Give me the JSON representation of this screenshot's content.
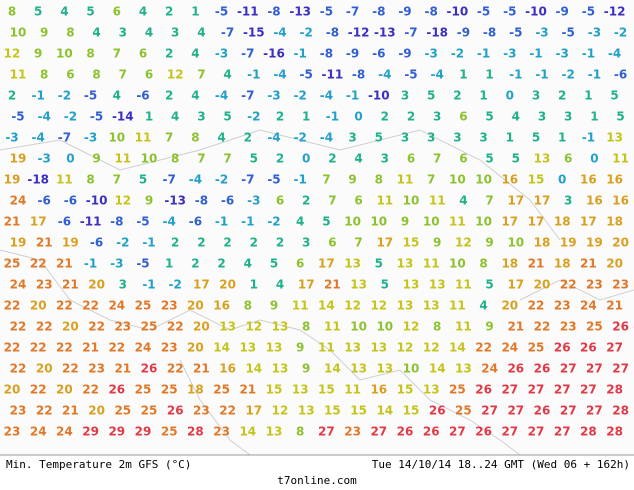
{
  "map": {
    "color_scale": [
      {
        "max": -10,
        "color": "#3a2fc0"
      },
      {
        "max": -5,
        "color": "#2f5fd0"
      },
      {
        "max": 0,
        "color": "#22a0c8"
      },
      {
        "max": 5,
        "color": "#1fb08c"
      },
      {
        "max": 10,
        "color": "#8cc22e"
      },
      {
        "max": 15,
        "color": "#c4c41c"
      },
      {
        "max": 20,
        "color": "#d8a020"
      },
      {
        "max": 25,
        "color": "#e07828"
      },
      {
        "max": 99,
        "color": "#e03a48"
      }
    ],
    "rows": [
      [
        8,
        5,
        4,
        5,
        6,
        4,
        2,
        1,
        -5,
        -11,
        -8,
        -13,
        -5,
        -7,
        -8,
        -9,
        -8,
        -10,
        -5,
        -5,
        -10,
        -9,
        -5,
        -12
      ],
      [
        10,
        9,
        8,
        4,
        3,
        4,
        3,
        4,
        -7,
        -15,
        -4,
        -2,
        -8,
        -12,
        -13,
        -7,
        -18,
        -9,
        -8,
        -5,
        -3,
        -5,
        -3,
        -2
      ],
      [
        12,
        9,
        10,
        8,
        7,
        6,
        2,
        4,
        -3,
        -7,
        -16,
        -1,
        -8,
        -9,
        -6,
        -9,
        -3,
        -2,
        -1,
        -3,
        -1,
        -3,
        -1,
        -4
      ],
      [
        11,
        8,
        6,
        8,
        7,
        6,
        12,
        7,
        4,
        -1,
        -4,
        -5,
        -11,
        -8,
        -4,
        -5,
        -4,
        1,
        1,
        -1,
        -1,
        -2,
        -1,
        -6
      ],
      [
        2,
        -1,
        -2,
        -5,
        4,
        -6,
        2,
        4,
        -4,
        -7,
        -3,
        -2,
        -4,
        -1,
        -10,
        3,
        5,
        2,
        1,
        0,
        3,
        2,
        1,
        5
      ],
      [
        -5,
        -4,
        -2,
        -5,
        -14,
        1,
        4,
        3,
        5,
        -2,
        2,
        1,
        -1,
        0,
        2,
        2,
        3,
        6,
        5,
        4,
        3,
        3,
        1,
        5
      ],
      [
        -3,
        -4,
        -7,
        -3,
        10,
        11,
        7,
        8,
        4,
        2,
        -4,
        -2,
        -4,
        3,
        5,
        3,
        3,
        3,
        3,
        1,
        5,
        1,
        -1,
        13
      ],
      [
        19,
        -3,
        0,
        9,
        11,
        10,
        8,
        7,
        7,
        5,
        2,
        0,
        2,
        4,
        3,
        6,
        7,
        6,
        5,
        5,
        13,
        6,
        0,
        11
      ],
      [
        19,
        -18,
        11,
        8,
        7,
        5,
        -7,
        -4,
        -2,
        -7,
        -5,
        -1,
        7,
        9,
        8,
        11,
        7,
        10,
        10,
        16,
        15,
        0,
        16,
        16
      ],
      [
        24,
        -6,
        -6,
        -10,
        12,
        9,
        -13,
        -8,
        -6,
        -3,
        6,
        2,
        7,
        6,
        11,
        10,
        11,
        4,
        7,
        17,
        17,
        3,
        16,
        16
      ],
      [
        21,
        17,
        -6,
        -11,
        -8,
        -5,
        -4,
        -6,
        -1,
        -1,
        -2,
        4,
        5,
        10,
        10,
        9,
        10,
        11,
        10,
        17,
        17,
        18,
        17,
        18
      ],
      [
        19,
        21,
        19,
        -6,
        -2,
        -1,
        2,
        2,
        2,
        2,
        2,
        3,
        6,
        7,
        17,
        15,
        9,
        12,
        9,
        10,
        18,
        19,
        19,
        20
      ],
      [
        25,
        22,
        21,
        -1,
        -3,
        -5,
        1,
        2,
        2,
        4,
        5,
        6,
        17,
        13,
        5,
        13,
        11,
        10,
        8,
        18,
        21,
        18,
        21,
        20
      ],
      [
        24,
        23,
        21,
        20,
        3,
        -1,
        -2,
        17,
        20,
        1,
        4,
        17,
        21,
        13,
        5,
        13,
        13,
        11,
        5,
        17,
        20,
        22,
        23,
        23
      ],
      [
        22,
        20,
        22,
        22,
        24,
        25,
        23,
        20,
        16,
        8,
        9,
        11,
        14,
        12,
        12,
        13,
        13,
        11,
        4,
        20,
        22,
        23,
        24,
        21
      ],
      [
        22,
        22,
        20,
        22,
        23,
        25,
        22,
        20,
        13,
        12,
        13,
        8,
        11,
        10,
        10,
        12,
        8,
        11,
        9,
        21,
        22,
        23,
        25,
        26
      ],
      [
        22,
        22,
        22,
        21,
        22,
        24,
        23,
        20,
        14,
        13,
        13,
        9,
        11,
        13,
        13,
        12,
        12,
        14,
        22,
        24,
        25,
        26,
        26,
        27
      ],
      [
        22,
        20,
        22,
        23,
        21,
        26,
        22,
        21,
        16,
        14,
        13,
        9,
        14,
        13,
        13,
        10,
        14,
        13,
        24,
        26,
        26,
        27,
        27,
        27
      ],
      [
        20,
        22,
        20,
        22,
        26,
        25,
        25,
        18,
        25,
        21,
        15,
        13,
        15,
        11,
        16,
        15,
        13,
        25,
        26,
        27,
        27,
        27,
        27,
        28
      ],
      [
        23,
        22,
        21,
        20,
        25,
        25,
        26,
        23,
        22,
        17,
        12,
        13,
        15,
        15,
        14,
        15,
        26,
        25,
        27,
        27,
        26,
        27,
        27,
        28
      ],
      [
        23,
        24,
        24,
        29,
        29,
        29,
        25,
        28,
        23,
        14,
        13,
        8,
        27,
        23,
        27,
        26,
        26,
        27,
        26,
        27,
        27,
        27,
        28,
        28
      ]
    ]
  },
  "footer": {
    "left": "Min. Temperature 2m GFS (°C)",
    "right": "Tue 14/10/14 18..24 GMT (Wed 06 + 162h)",
    "site": "t7online.com"
  }
}
